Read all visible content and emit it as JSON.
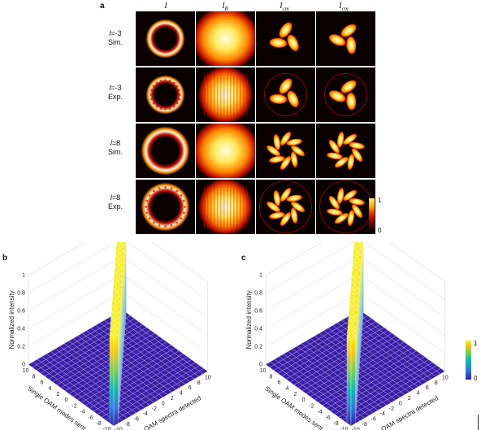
{
  "panel_a": {
    "letter": "a",
    "col_heads": [
      {
        "main": "I",
        "sub": ""
      },
      {
        "main": "I",
        "sub": "R"
      },
      {
        "main": "I",
        "sub": "cm"
      },
      {
        "main": "I",
        "sub": "cm"
      }
    ],
    "rows": [
      {
        "l": "l",
        "eq": "=-3",
        "kind": "Sim."
      },
      {
        "l": "l",
        "eq": "=-3",
        "kind": "Exp."
      },
      {
        "l": "l",
        "eq": "=8",
        "kind": "Sim."
      },
      {
        "l": "l",
        "eq": "=8",
        "kind": "Exp."
      }
    ],
    "colorbar": {
      "max_label": "1",
      "min_label": "0"
    },
    "patterns": {
      "row_petals": [
        3,
        3,
        8,
        8
      ],
      "colors": {
        "dark": "#0a0000",
        "red": "#c81400",
        "orange": "#ff8a00",
        "yellow": "#ffe95a",
        "white": "#fffbe0"
      }
    }
  },
  "panel_b": {
    "letter": "b",
    "ylabel": "Normalized intensity",
    "xlabel": "OAM spectra detected",
    "zlabel": "Single OAM modes sent",
    "x_ticks": [
      "-10",
      "-8",
      "-6",
      "-4",
      "-2",
      "0",
      "2",
      "4",
      "6",
      "8",
      "10"
    ],
    "z_ticks": [
      "-10",
      "-8",
      "-6",
      "-4",
      "-2",
      "0",
      "2",
      "4",
      "6",
      "8",
      "10"
    ],
    "y_ticks": [
      "0",
      "0.2",
      "0.4",
      "0.6",
      "0.8",
      "1"
    ]
  },
  "panel_c": {
    "letter": "c",
    "ylabel": "Normalized intensity",
    "xlabel": "OAM spectra detected",
    "zlabel": "Single OAM modes sent",
    "x_ticks": [
      "-10",
      "-8",
      "-6",
      "-4",
      "-2",
      "0",
      "2",
      "4",
      "6",
      "8",
      "10"
    ],
    "z_ticks": [
      "-10",
      "-8",
      "-6",
      "-4",
      "-2",
      "0",
      "2",
      "4",
      "6",
      "8",
      "10"
    ],
    "y_ticks": [
      "0",
      "0.2",
      "0.4",
      "0.6",
      "0.8",
      "1"
    ]
  },
  "colorbar_bc": {
    "max_label": "1",
    "min_label": "0",
    "colors": [
      "#3b1fa8",
      "#2c7fd8",
      "#17b8b0",
      "#7ccf5a",
      "#f2c81c",
      "#f9f416"
    ]
  },
  "chart_data": [
    {
      "type": "bar",
      "title": "",
      "xlabel": "OAM spectra detected",
      "ylabel": "Normalized intensity",
      "zlabel": "Single OAM modes sent",
      "ylim": [
        0,
        1
      ],
      "modes_sent": [
        -10,
        -9,
        -8,
        -7,
        -6,
        -5,
        -4,
        -3,
        -2,
        -1,
        0,
        1,
        2,
        3,
        4,
        5,
        6,
        7,
        8,
        9,
        10
      ],
      "diagonal_values": [
        1,
        1,
        1,
        1,
        1,
        1,
        1,
        1,
        1,
        1,
        1,
        1,
        1,
        1,
        1,
        1,
        1,
        1,
        1,
        1,
        1
      ],
      "offdiagonal_level": 0.02
    },
    {
      "type": "bar",
      "title": "",
      "xlabel": "OAM spectra detected",
      "ylabel": "Normalized intensity",
      "zlabel": "Single OAM modes sent",
      "ylim": [
        0,
        1
      ],
      "modes_sent": [
        -10,
        -9,
        -8,
        -7,
        -6,
        -5,
        -4,
        -3,
        -2,
        -1,
        0,
        1,
        2,
        3,
        4,
        5,
        6,
        7,
        8,
        9,
        10
      ],
      "diagonal_values": [
        0.98,
        0.97,
        0.96,
        0.97,
        0.96,
        0.97,
        0.96,
        0.96,
        0.97,
        0.96,
        0.96,
        0.96,
        0.97,
        0.96,
        0.95,
        0.96,
        0.96,
        0.95,
        0.93,
        0.93,
        0.92
      ],
      "offdiagonal_level": 0.04
    }
  ]
}
